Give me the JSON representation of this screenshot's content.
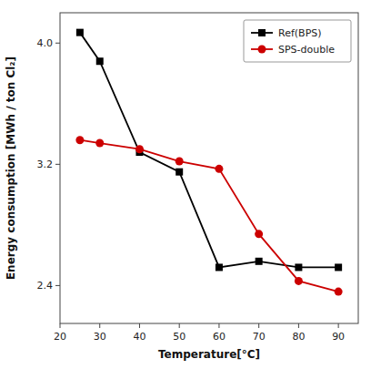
{
  "chart_data": {
    "type": "line",
    "xlabel": "Temperature[°C]",
    "ylabel": "Energy consumption [MWh / ton Cl₂]",
    "x": [
      25,
      30,
      40,
      50,
      60,
      70,
      80,
      90
    ],
    "series": [
      {
        "name": "Ref(BPS)",
        "color": "#000000",
        "marker": "square",
        "values": [
          4.07,
          3.88,
          3.28,
          3.15,
          2.52,
          2.56,
          2.52,
          2.52
        ]
      },
      {
        "name": "SPS-double",
        "color": "#cc0000",
        "marker": "circle",
        "values": [
          3.36,
          3.34,
          3.3,
          3.22,
          3.17,
          2.74,
          2.43,
          2.36
        ]
      }
    ],
    "xlim": [
      20,
      95
    ],
    "ylim": [
      2.15,
      4.2
    ],
    "xticks": [
      20,
      30,
      40,
      50,
      60,
      70,
      80,
      90
    ],
    "yticks": [
      2.4,
      3.2,
      {
        "value": 4,
        "label": "4.0"
      }
    ],
    "grid": false,
    "legend": "upper-right"
  }
}
